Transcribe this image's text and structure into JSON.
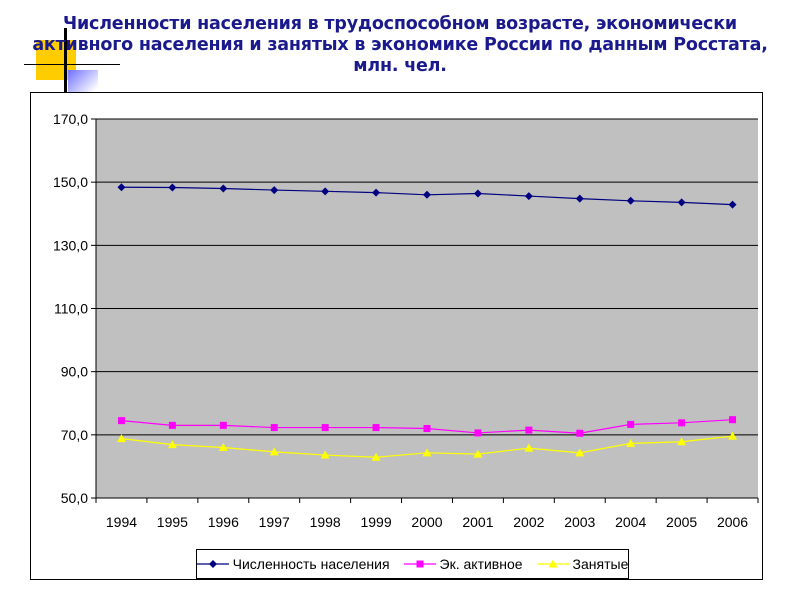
{
  "slide": {
    "title_lines": [
      "Численности населения в трудоспособном возрасте, экономически",
      "активного населения и занятых в экономике России по данным Росстата,",
      "млн. чел."
    ]
  },
  "chart_data": {
    "type": "line",
    "title": "",
    "xlabel": "",
    "ylabel": "",
    "ylim": [
      50,
      170
    ],
    "y_ticks": [
      "50,0",
      "70,0",
      "90,0",
      "110,0",
      "130,0",
      "150,0",
      "170,0"
    ],
    "categories": [
      "1994",
      "1995",
      "1996",
      "1997",
      "1998",
      "1999",
      "2000",
      "2001",
      "2002",
      "2003",
      "2004",
      "2005",
      "2006"
    ],
    "grid": true,
    "legend_position": "bottom",
    "plot_background": "#c0c0c0",
    "series": [
      {
        "name": "Численность населения",
        "color": "#000080",
        "marker": "diamond",
        "values": [
          148.4,
          148.3,
          148.0,
          147.5,
          147.1,
          146.7,
          146.0,
          146.4,
          145.6,
          144.8,
          144.1,
          143.6,
          142.9
        ]
      },
      {
        "name": "Эк. активное",
        "color": "#ff00ff",
        "marker": "square",
        "values": [
          74.5,
          73.0,
          73.0,
          72.3,
          72.3,
          72.3,
          72.0,
          70.6,
          71.5,
          70.5,
          73.3,
          73.8,
          74.8
        ]
      },
      {
        "name": "Занятые",
        "color": "#ffff00",
        "marker": "triangle",
        "values": [
          68.8,
          66.9,
          66.0,
          64.6,
          63.6,
          62.9,
          64.3,
          63.9,
          65.8,
          64.3,
          67.3,
          67.8,
          69.6
        ]
      }
    ]
  }
}
